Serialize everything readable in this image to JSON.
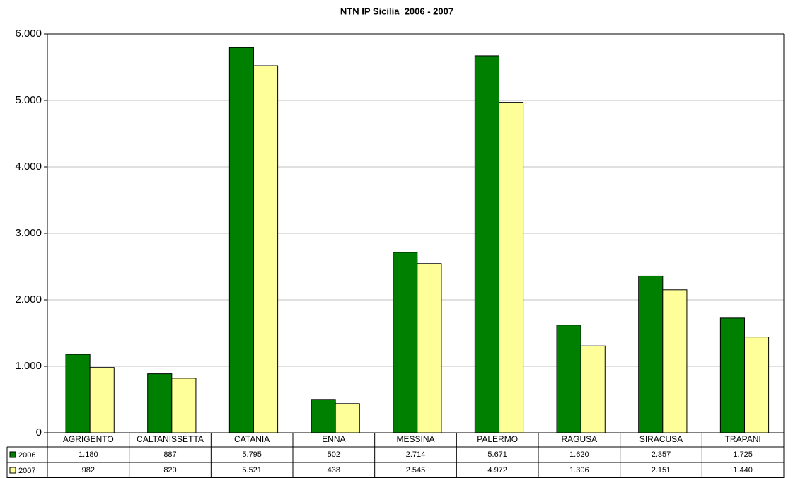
{
  "chart_data": {
    "type": "bar",
    "title": "NTN IP Sicilia  2006 - 2007",
    "categories": [
      "AGRIGENTO",
      "CALTANISSETTA",
      "CATANIA",
      "ENNA",
      "MESSINA",
      "PALERMO",
      "RAGUSA",
      "SIRACUSA",
      "TRAPANI"
    ],
    "series": [
      {
        "name": "2006",
        "color": "#008000",
        "values": [
          1180,
          887,
          5795,
          502,
          2714,
          5671,
          1620,
          2357,
          1725
        ],
        "value_labels": [
          "1.180",
          "887",
          "5.795",
          "502",
          "2.714",
          "5.671",
          "1.620",
          "2.357",
          "1.725"
        ]
      },
      {
        "name": "2007",
        "color": "#ffff99",
        "values": [
          982,
          820,
          5521,
          438,
          2545,
          4972,
          1306,
          2151,
          1440
        ],
        "value_labels": [
          "982",
          "820",
          "5.521",
          "438",
          "2.545",
          "4.972",
          "1.306",
          "2.151",
          "1.440"
        ]
      }
    ],
    "ylim": [
      0,
      6000
    ],
    "yticks": [
      0,
      {
        "value": 1000,
        "label": "1.000"
      },
      {
        "value": 2000,
        "label": "2.000"
      },
      {
        "value": 3000,
        "label": "3.000"
      },
      {
        "value": 4000,
        "label": "4.000"
      },
      {
        "value": 5000,
        "label": "5.000"
      },
      {
        "value": 6000,
        "label": "6.000"
      }
    ],
    "grid": true
  }
}
